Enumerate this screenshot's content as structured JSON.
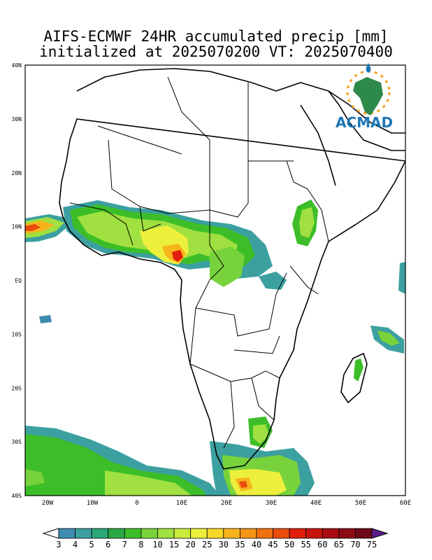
{
  "title": {
    "line1": "AIFS-ECMWF 24HR accumulated precip [mm]",
    "line2": "initialized at 2025070200 VT: 2025070400"
  },
  "logo": {
    "text": "ACMAD",
    "icon": "africa-map-logo-icon"
  },
  "map": {
    "region": "Africa",
    "lon_range": [
      -25,
      60
    ],
    "lat_range": [
      -40,
      40
    ],
    "y_ticks": [
      "40N",
      "30N",
      "20N",
      "10N",
      "EQ",
      "10S",
      "20S",
      "30S",
      "40S"
    ],
    "x_ticks": [
      "20W",
      "10W",
      "0",
      "10E",
      "20E",
      "30E",
      "40E",
      "50E",
      "60E"
    ]
  },
  "colorbar": {
    "levels": [
      "3",
      "4",
      "5",
      "6",
      "7",
      "8",
      "10",
      "15",
      "20",
      "25",
      "30",
      "35",
      "40",
      "45",
      "50",
      "55",
      "60",
      "65",
      "70",
      "75"
    ],
    "colors": [
      "#3e8cb0",
      "#3ca0a0",
      "#2aa87a",
      "#2ca846",
      "#3cbe28",
      "#78d23c",
      "#a0e040",
      "#c8ec3c",
      "#ecf03c",
      "#f8d828",
      "#f8b41c",
      "#f49414",
      "#f07010",
      "#ea4c0c",
      "#e01e0a",
      "#c8140c",
      "#a80c10",
      "#8c0a14",
      "#6c0818",
      "#5a1a8c"
    ]
  },
  "chart_data": {
    "type": "heatmap",
    "title": "AIFS-ECMWF 24HR accumulated precip [mm] initialized at 2025070200 VT: 2025070400",
    "variable": "24HR accumulated precip",
    "unit": "mm",
    "x_ticks": [
      "20W",
      "10W",
      "0",
      "10E",
      "20E",
      "30E",
      "40E",
      "50E",
      "60E"
    ],
    "y_ticks": [
      "40N",
      "30N",
      "20N",
      "10N",
      "EQ",
      "10S",
      "20S",
      "30S",
      "40S"
    ],
    "xlim": [
      -25,
      60
    ],
    "ylim": [
      -40,
      40
    ],
    "levels": [
      3,
      4,
      5,
      6,
      7,
      8,
      10,
      15,
      20,
      25,
      30,
      35,
      40,
      45,
      50,
      55,
      60,
      65,
      70,
      75
    ],
    "precip_regions": [
      {
        "lon": [
          -25,
          -10
        ],
        "lat": [
          6,
          11
        ],
        "peak_mm": 30
      },
      {
        "lon": [
          -15,
          15
        ],
        "lat": [
          5,
          12
        ],
        "peak_mm": 20
      },
      {
        "lon": [
          5,
          10
        ],
        "lat": [
          4,
          7
        ],
        "peak_mm": 50
      },
      {
        "lon": [
          10,
          28
        ],
        "lat": [
          4,
          11
        ],
        "peak_mm": 15
      },
      {
        "lon": [
          34,
          39
        ],
        "lat": [
          7,
          15
        ],
        "peak_mm": 10
      },
      {
        "lon": [
          47,
          58
        ],
        "lat": [
          -12,
          -8
        ],
        "peak_mm": 10
      },
      {
        "lon": [
          -25,
          10
        ],
        "lat": [
          -40,
          -28
        ],
        "peak_mm": 15
      },
      {
        "lon": [
          18,
          40
        ],
        "lat": [
          -40,
          -30
        ],
        "peak_mm": 40
      },
      {
        "lon": [
          26,
          32
        ],
        "lat": [
          -31,
          -26
        ],
        "peak_mm": 8
      }
    ]
  }
}
